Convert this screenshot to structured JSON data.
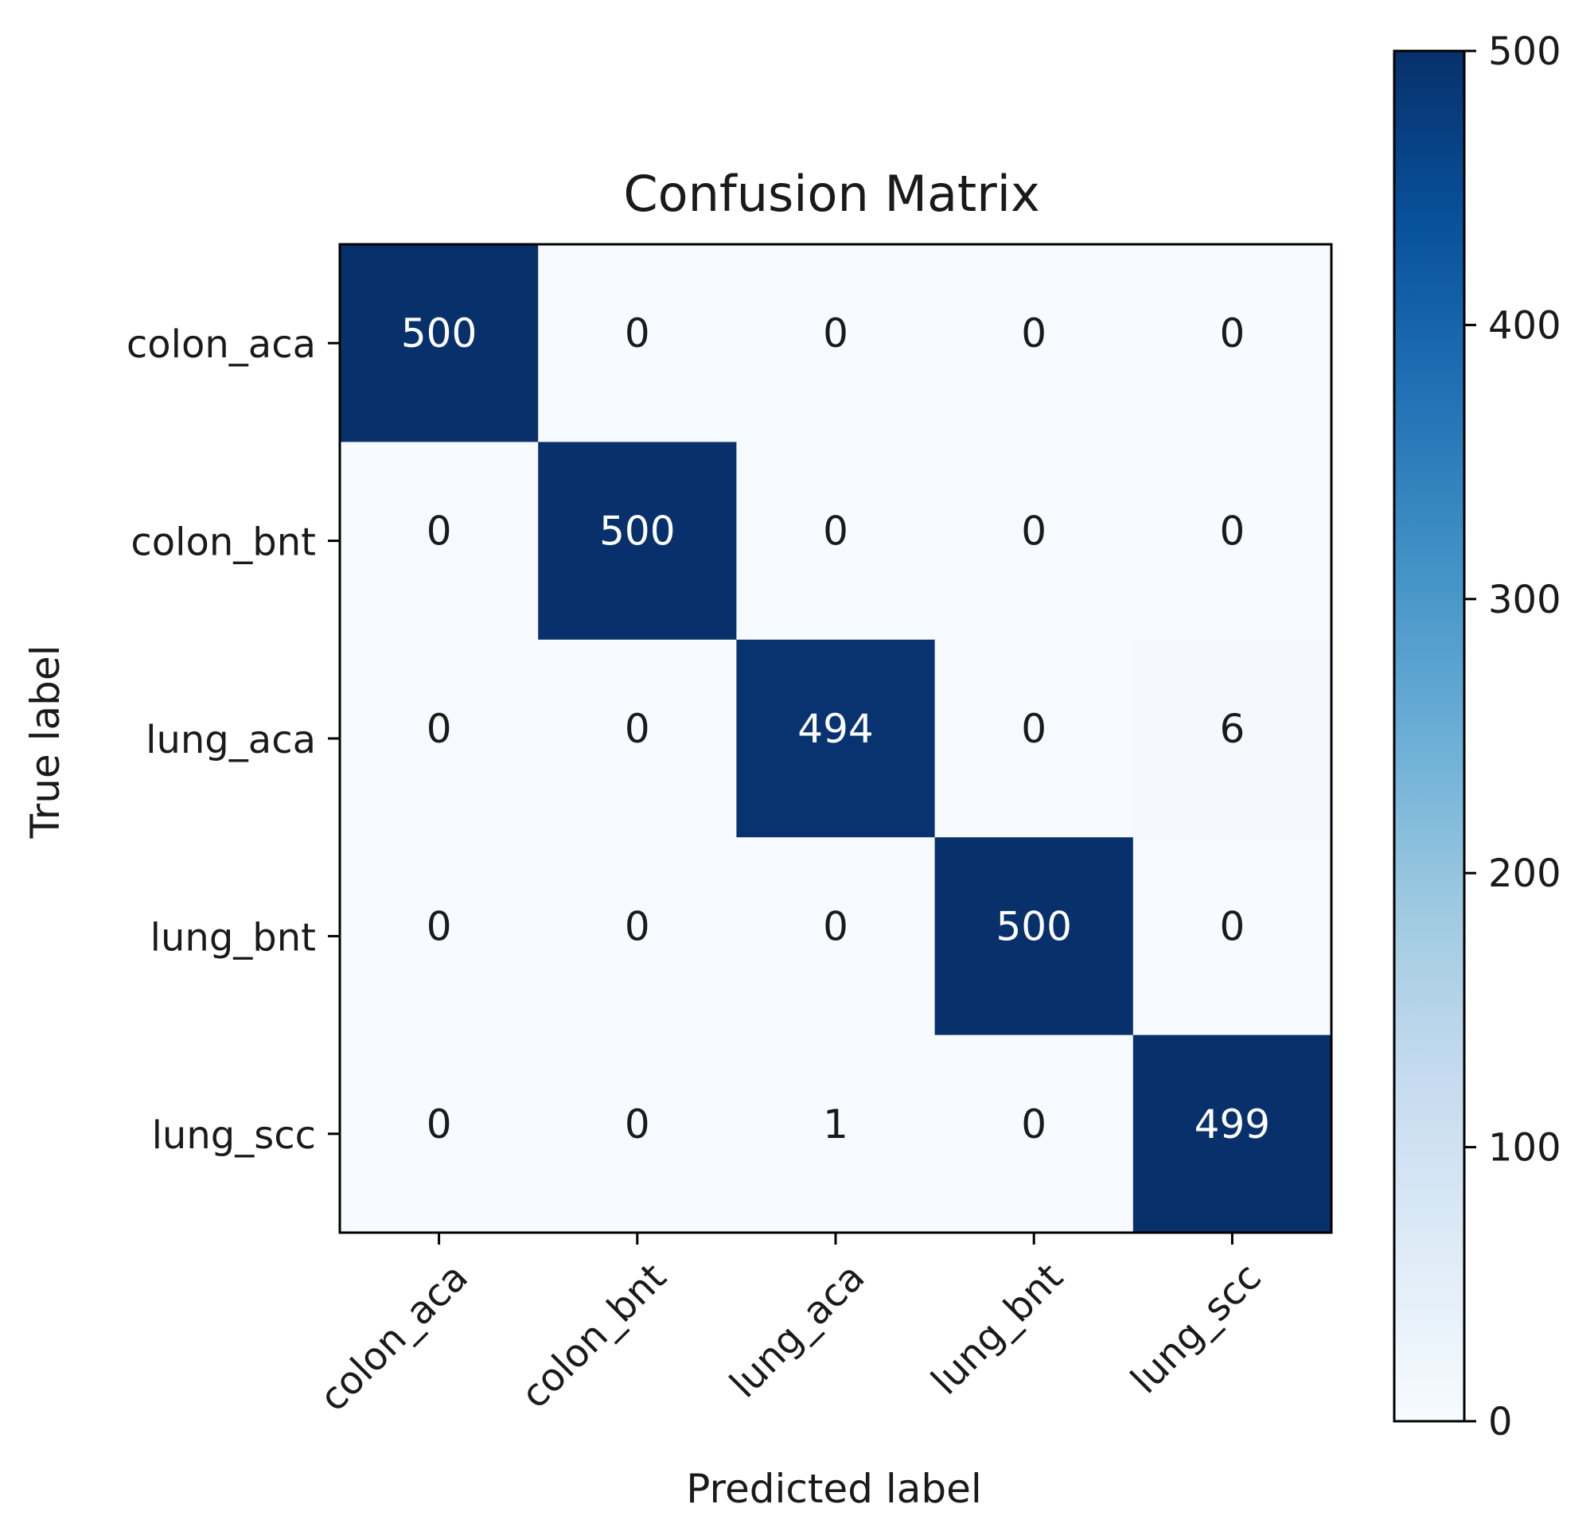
{
  "chart_data": {
    "type": "heatmap",
    "title": "Confusion Matrix",
    "xlabel": "Predicted label",
    "ylabel": "True label",
    "x_categories": [
      "colon_aca",
      "colon_bnt",
      "lung_aca",
      "lung_bnt",
      "lung_scc"
    ],
    "y_categories": [
      "colon_aca",
      "colon_bnt",
      "lung_aca",
      "lung_bnt",
      "lung_scc"
    ],
    "matrix": [
      [
        500,
        0,
        0,
        0,
        0
      ],
      [
        0,
        500,
        0,
        0,
        0
      ],
      [
        0,
        0,
        494,
        0,
        6
      ],
      [
        0,
        0,
        0,
        500,
        0
      ],
      [
        0,
        0,
        1,
        0,
        499
      ]
    ],
    "colormap": "Blues",
    "colorbar": {
      "min": 0,
      "max": 500,
      "ticks": [
        0,
        100,
        200,
        300,
        400,
        500
      ]
    },
    "grid": false
  }
}
